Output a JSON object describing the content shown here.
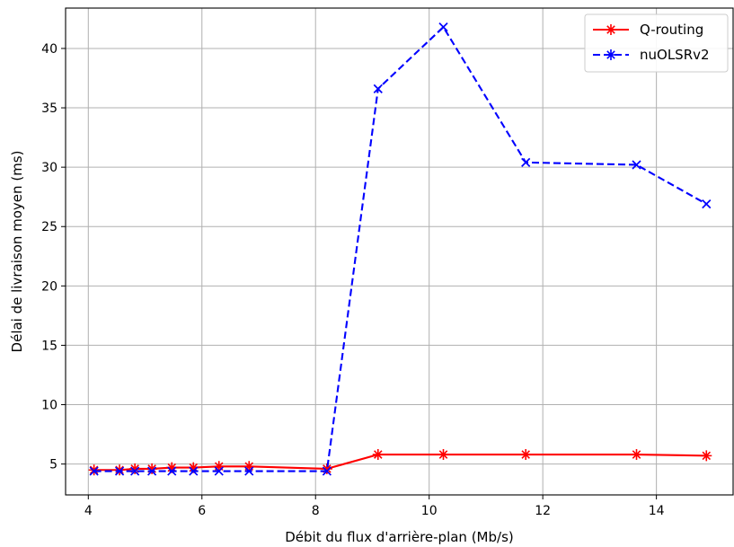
{
  "chart_data": {
    "type": "line",
    "title": "",
    "xlabel": "Débit du flux d'arrière-plan (Mb/s)",
    "ylabel": "Délai de livraison moyen (ms)",
    "xlim": [
      3.6,
      15.35
    ],
    "ylim": [
      2.4,
      43.4
    ],
    "xticks": [
      4,
      6,
      8,
      10,
      12,
      14
    ],
    "yticks": [
      5,
      10,
      15,
      20,
      25,
      30,
      35,
      40
    ],
    "grid": true,
    "legend_position": "top-right",
    "series": [
      {
        "name": "Q-routing",
        "color": "#ff0000",
        "line_style": "solid",
        "marker": "asterisk",
        "x": [
          4.1,
          4.55,
          4.82,
          5.12,
          5.47,
          5.85,
          6.3,
          6.83,
          8.2,
          9.1,
          10.25,
          11.7,
          13.65,
          14.88
        ],
        "y": [
          4.5,
          4.5,
          4.6,
          4.6,
          4.7,
          4.7,
          4.8,
          4.8,
          4.6,
          5.8,
          5.8,
          5.8,
          5.8,
          5.7
        ]
      },
      {
        "name": "nuOLSRv2",
        "color": "#0000ff",
        "line_style": "dashed",
        "marker": "x",
        "x": [
          4.1,
          4.55,
          4.82,
          5.12,
          5.47,
          5.85,
          6.3,
          6.83,
          8.2,
          9.1,
          10.25,
          11.7,
          13.65,
          14.88
        ],
        "y": [
          4.4,
          4.4,
          4.4,
          4.4,
          4.4,
          4.4,
          4.4,
          4.4,
          4.4,
          36.6,
          41.8,
          30.4,
          30.2,
          26.9
        ]
      }
    ]
  }
}
